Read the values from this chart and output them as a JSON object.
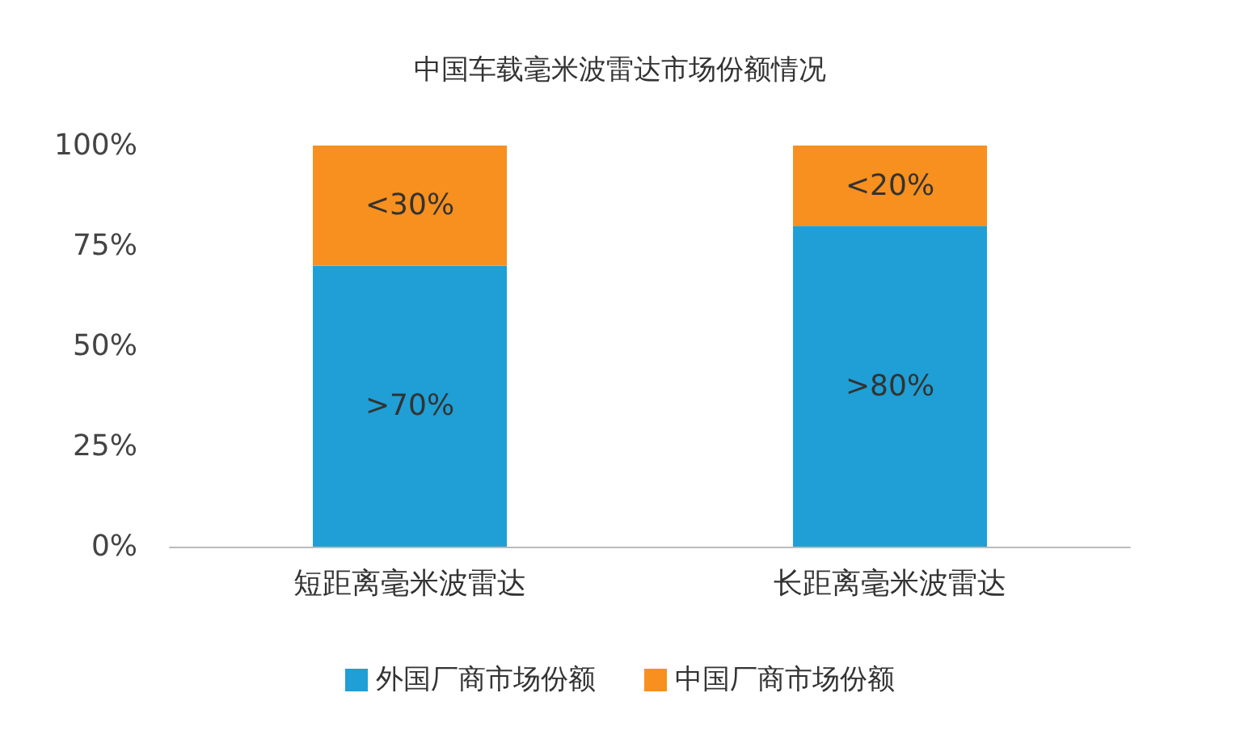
{
  "chart_data": {
    "type": "bar",
    "title": "中国车载毫米波雷达市场份额情况",
    "categories": [
      "短距离毫米波雷达",
      "长距离毫米波雷达"
    ],
    "stacked": true,
    "series": [
      {
        "name": "外国厂商市场份额",
        "color": "#1f9fd5",
        "values": [
          70,
          80
        ],
        "value_labels": [
          ">70%",
          ">80%"
        ]
      },
      {
        "name": "中国厂商市场份额",
        "color": "#f7901e",
        "values": [
          30,
          20
        ],
        "value_labels": [
          "<30%",
          "<20%"
        ]
      }
    ],
    "ylim": [
      0,
      100
    ],
    "yticks": [
      {
        "value": 0,
        "label": "0%"
      },
      {
        "value": 25,
        "label": "25%"
      },
      {
        "value": 50,
        "label": "50%"
      },
      {
        "value": 75,
        "label": "75%"
      },
      {
        "value": 100,
        "label": "100%"
      }
    ],
    "grid": false,
    "legend": "bottom"
  }
}
